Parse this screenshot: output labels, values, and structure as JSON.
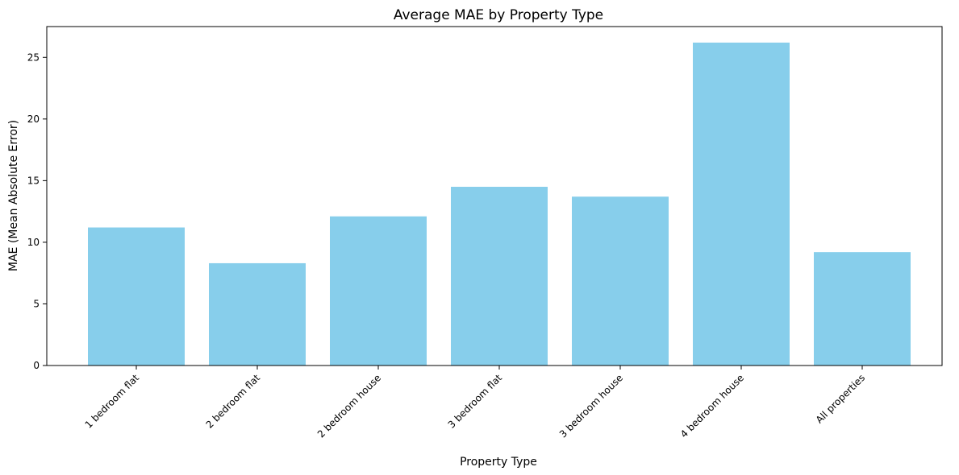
{
  "chart_data": {
    "type": "bar",
    "title": "Average MAE by Property Type",
    "xlabel": "Property Type",
    "ylabel": "MAE (Mean Absolute Error)",
    "categories": [
      "1 bedroom flat",
      "2 bedroom flat",
      "2 bedroom house",
      "3 bedroom flat",
      "3 bedroom house",
      "4 bedroom house",
      "All properties"
    ],
    "values": [
      11.2,
      8.3,
      12.1,
      14.5,
      13.7,
      26.2,
      9.2
    ],
    "ylim": [
      0,
      27.5
    ],
    "yticks": [
      0,
      5,
      10,
      15,
      20,
      25
    ],
    "bar_color": "#87ceeb",
    "grid": false,
    "legend": "none"
  }
}
